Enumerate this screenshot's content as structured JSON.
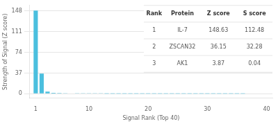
{
  "chart_data": {
    "type": "bar",
    "xlabel": "Signal Rank (Top 40)",
    "ylabel": "Strength of Signal (Z score)",
    "x": [
      1,
      2,
      3,
      4,
      5,
      6,
      7,
      8,
      9,
      10,
      11,
      12,
      13,
      14,
      15,
      16,
      17,
      18,
      19,
      20,
      21,
      22,
      23,
      24,
      25,
      26,
      27,
      28,
      29,
      30,
      31,
      32,
      33,
      34,
      35,
      36,
      37,
      38,
      39,
      40
    ],
    "values": [
      148.63,
      36.15,
      3.87,
      1.8,
      1.2,
      0.9,
      0.7,
      0.55,
      0.45,
      0.38,
      0.32,
      0.28,
      0.24,
      0.2,
      0.17,
      0.15,
      0.13,
      0.11,
      0.1,
      0.09,
      0.08,
      0.07,
      0.06,
      0.05,
      0.04,
      0.04,
      0.03,
      0.03,
      0.02,
      0.02,
      0.02,
      0.01,
      0.01,
      0.01,
      0.01,
      0.01,
      0.0,
      0.0,
      0.0,
      0.0
    ],
    "color": "#4bbfde",
    "xlim": [
      0,
      41
    ],
    "xticks": [
      1,
      10,
      20,
      30,
      40
    ],
    "ylim": [
      -8,
      158
    ],
    "yticks": [
      0,
      37,
      74,
      111,
      148
    ],
    "grid": "y",
    "table": {
      "headers": [
        "Rank",
        "Protein",
        "Z score",
        "S score"
      ],
      "rows": [
        [
          "1",
          "IL-7",
          "148.63",
          "112.48"
        ],
        [
          "2",
          "ZSCAN32",
          "36.15",
          "32.28"
        ],
        [
          "3",
          "AK1",
          "3.87",
          "0.04"
        ]
      ]
    }
  }
}
